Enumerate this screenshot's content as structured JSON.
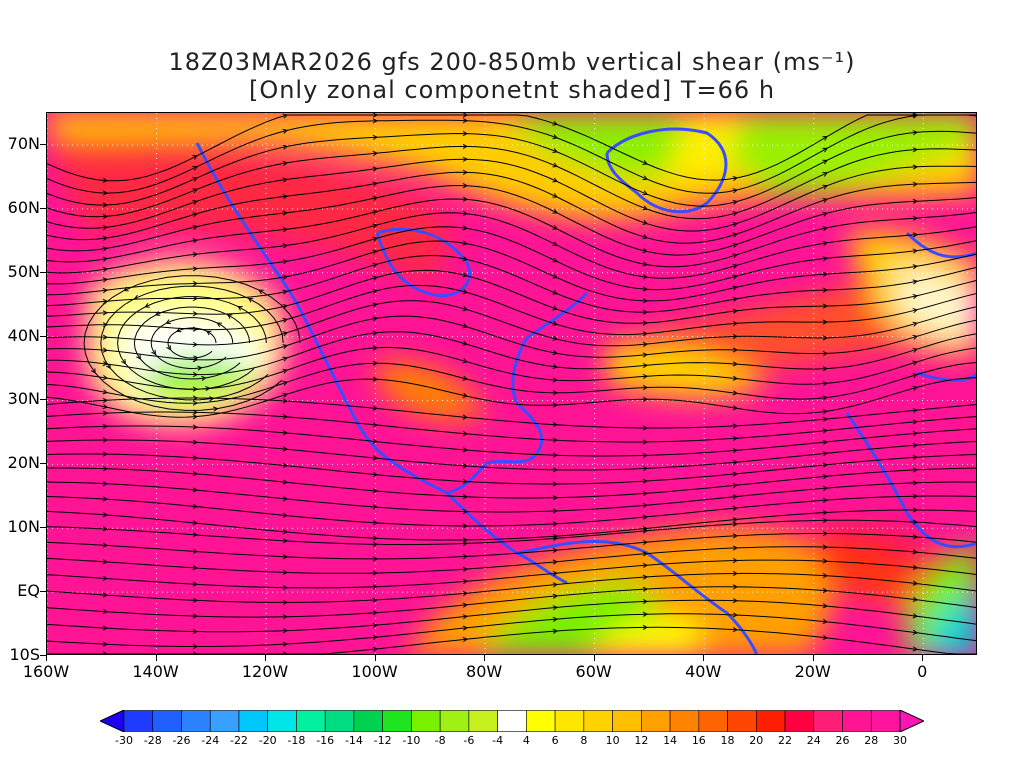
{
  "title": {
    "line1": "18Z03MAR2026 gfs 200-850mb vertical shear (ms⁻¹)",
    "line2": "[Only zonal componetnt shaded] T=66 h"
  },
  "map": {
    "lat_labels": [
      "70N",
      "60N",
      "50N",
      "40N",
      "30N",
      "20N",
      "10N",
      "EQ",
      "10S"
    ],
    "lat_values": [
      70,
      60,
      50,
      40,
      30,
      20,
      10,
      0,
      -10
    ],
    "lon_labels": [
      "160W",
      "140W",
      "120W",
      "100W",
      "80W",
      "60W",
      "40W",
      "20W",
      "0"
    ],
    "lon_values": [
      -160,
      -140,
      -120,
      -100,
      -80,
      -60,
      -40,
      -20,
      0
    ],
    "lat_range": [
      -10,
      75
    ],
    "lon_range": [
      -160,
      10
    ],
    "gridlines": "dotted",
    "coast_color": "#3b4cff",
    "state_color": "#7d5aa0"
  },
  "colorbar": {
    "labels": [
      "-30",
      "-28",
      "-26",
      "-24",
      "-22",
      "-20",
      "-18",
      "-16",
      "-14",
      "-12",
      "-10",
      "-8",
      "-6",
      "-4",
      "4",
      "6",
      "8",
      "10",
      "12",
      "14",
      "16",
      "18",
      "20",
      "22",
      "24",
      "26",
      "28",
      "30"
    ],
    "colors": [
      "#1e00f0",
      "#1e3cff",
      "#2060ff",
      "#2d82ff",
      "#3aa0ff",
      "#00c8ff",
      "#00e6e6",
      "#00f0a0",
      "#00dc82",
      "#00d250",
      "#1ee61e",
      "#78f000",
      "#a0f014",
      "#c8f01e",
      "#ffffff",
      "#ffff00",
      "#ffe600",
      "#ffd200",
      "#ffbe00",
      "#ffa000",
      "#ff8200",
      "#ff6400",
      "#ff4600",
      "#ff1e00",
      "#ff0040",
      "#ff1e78",
      "#ff1496",
      "#ff14a0",
      "#ff14b4"
    ]
  }
}
